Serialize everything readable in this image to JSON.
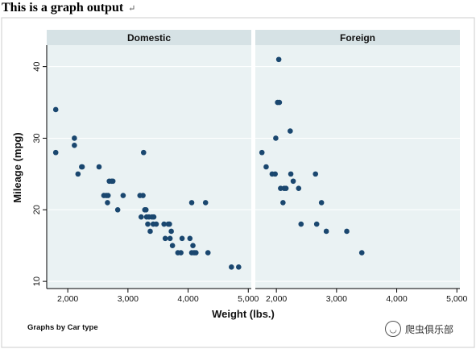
{
  "document": {
    "title": "This is a graph output",
    "paragraph_mark": "↵"
  },
  "watermark": {
    "text": "爬虫俱乐部",
    "icon": "wechat-icon"
  },
  "colors": {
    "plot_background": "#eaf2f3",
    "strip_background": "#d6e2e5",
    "marker": "#1a476f",
    "grid": "#ffffff"
  },
  "chart_data": {
    "type": "scatter",
    "xlabel": "Weight (lbs.)",
    "ylabel": "Mileage (mpg)",
    "note": "Graphs by Car type",
    "xlim": [
      1650,
      5050
    ],
    "ylim": [
      9,
      43
    ],
    "xticks": [
      2000,
      3000,
      4000,
      5000
    ],
    "xtick_labels": [
      "2,000",
      "3,000",
      "4,000",
      "5,000"
    ],
    "yticks": [
      10,
      20,
      30,
      40
    ],
    "ytick_labels": [
      "10",
      "20",
      "30",
      "40"
    ],
    "grid": true,
    "panels": [
      {
        "name": "Domestic",
        "points": [
          [
            1800,
            34
          ],
          [
            1800,
            28
          ],
          [
            2110,
            30
          ],
          [
            2110,
            29
          ],
          [
            2170,
            25
          ],
          [
            2230,
            26
          ],
          [
            2240,
            26
          ],
          [
            2520,
            26
          ],
          [
            2600,
            22
          ],
          [
            2640,
            22
          ],
          [
            2660,
            21
          ],
          [
            2670,
            22
          ],
          [
            2690,
            24
          ],
          [
            2730,
            24
          ],
          [
            2750,
            24
          ],
          [
            2830,
            20
          ],
          [
            2920,
            22
          ],
          [
            3200,
            22
          ],
          [
            3220,
            19
          ],
          [
            3250,
            22
          ],
          [
            3260,
            28
          ],
          [
            3280,
            20
          ],
          [
            3300,
            20
          ],
          [
            3310,
            19
          ],
          [
            3330,
            18
          ],
          [
            3350,
            19
          ],
          [
            3370,
            17
          ],
          [
            3400,
            19
          ],
          [
            3420,
            18
          ],
          [
            3430,
            19
          ],
          [
            3470,
            18
          ],
          [
            3600,
            18
          ],
          [
            3620,
            16
          ],
          [
            3670,
            18
          ],
          [
            3690,
            18
          ],
          [
            3700,
            16
          ],
          [
            3720,
            17
          ],
          [
            3740,
            15
          ],
          [
            3830,
            14
          ],
          [
            3880,
            14
          ],
          [
            3900,
            16
          ],
          [
            4030,
            16
          ],
          [
            4060,
            21
          ],
          [
            4060,
            14
          ],
          [
            4080,
            15
          ],
          [
            4100,
            14
          ],
          [
            4130,
            14
          ],
          [
            4290,
            21
          ],
          [
            4330,
            14
          ],
          [
            4720,
            12
          ],
          [
            4840,
            12
          ]
        ]
      },
      {
        "name": "Foreign",
        "points": [
          [
            1760,
            28
          ],
          [
            1830,
            26
          ],
          [
            1930,
            25
          ],
          [
            1980,
            25
          ],
          [
            1990,
            30
          ],
          [
            2040,
            41
          ],
          [
            2020,
            35
          ],
          [
            2050,
            35
          ],
          [
            2070,
            23
          ],
          [
            2110,
            21
          ],
          [
            2130,
            23
          ],
          [
            2160,
            23
          ],
          [
            2230,
            31
          ],
          [
            2240,
            25
          ],
          [
            2280,
            24
          ],
          [
            2370,
            23
          ],
          [
            2410,
            18
          ],
          [
            2650,
            25
          ],
          [
            2670,
            18
          ],
          [
            2750,
            21
          ],
          [
            2830,
            17
          ],
          [
            3170,
            17
          ],
          [
            3420,
            14
          ]
        ]
      }
    ]
  }
}
